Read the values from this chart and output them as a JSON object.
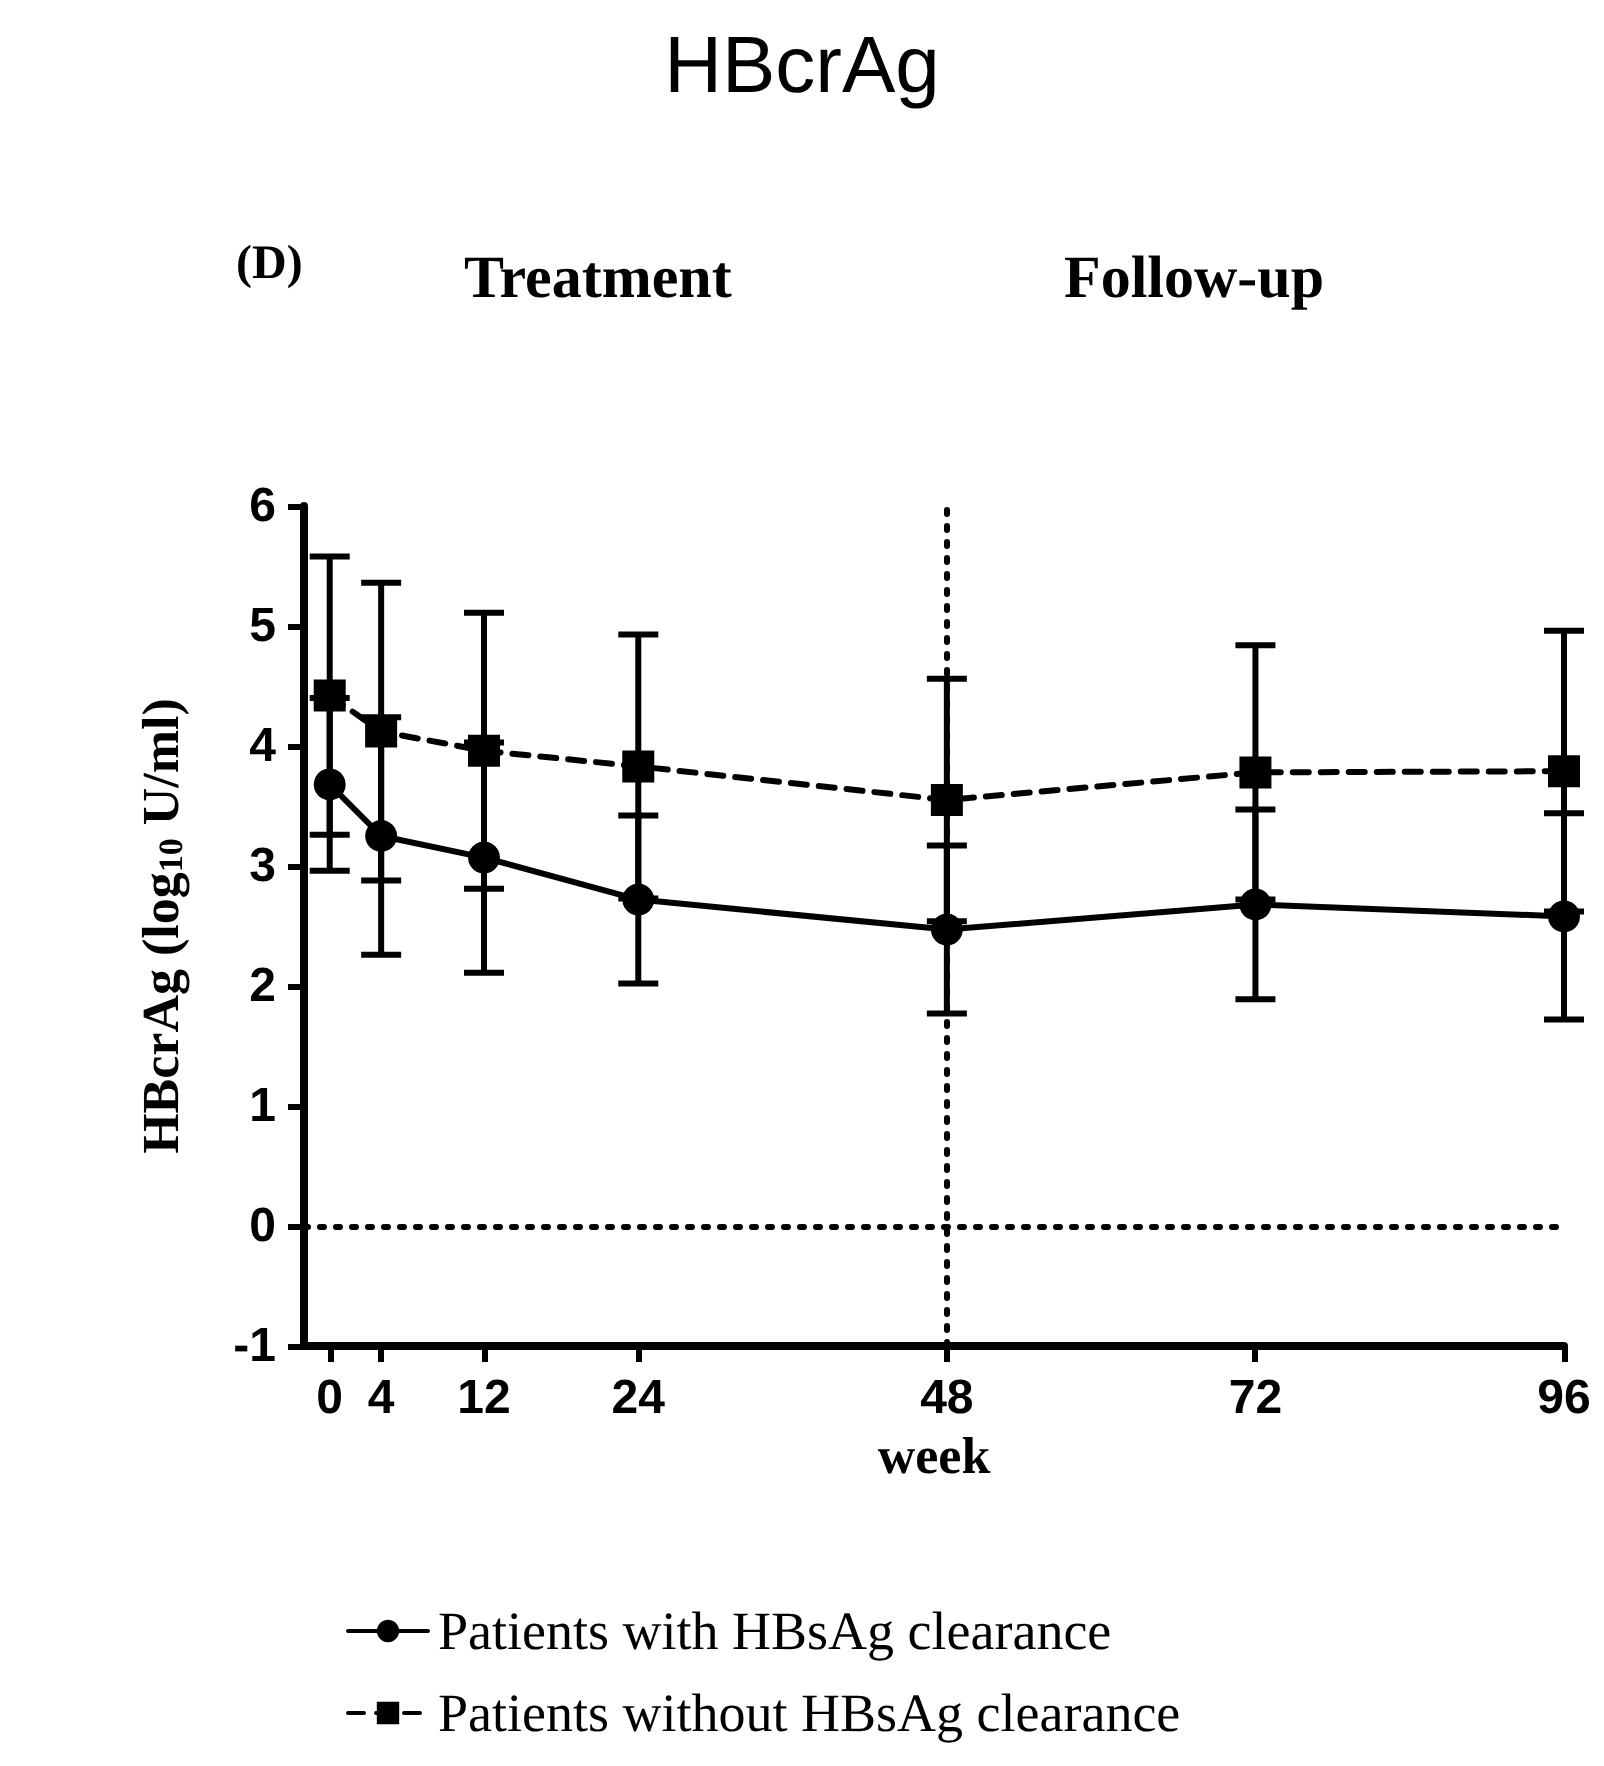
{
  "chart_data": {
    "type": "line",
    "title": "HBcrAg",
    "xlabel": "week",
    "ylabel": "HBcrAg (log$_{10}$ U/ml)",
    "annotations": [
      "(D)",
      "Treatment",
      "Follow-up"
    ],
    "x": [
      0,
      4,
      12,
      24,
      48,
      72,
      96
    ],
    "xlim": [
      -2,
      96
    ],
    "xticks": [
      0,
      4,
      12,
      24,
      48,
      72,
      96
    ],
    "ylim": [
      -1,
      6
    ],
    "yticks": [
      -1,
      0,
      1,
      2,
      3,
      4,
      5,
      6
    ],
    "series": [
      {
        "name": "Patients with HBsAg clearance",
        "color": "#000000",
        "marker": "circle",
        "line_style": "solid",
        "values": [
          3.68,
          3.25,
          3.07,
          2.72,
          2.47,
          2.68,
          2.58
        ],
        "errors": [
          0.72,
          0.99,
          0.96,
          0.7,
          0.7,
          0.79,
          0.86
        ]
      },
      {
        "name": "Patients without HBsAg clearance",
        "color": "#000000",
        "marker": "square",
        "line_style": "dashed",
        "values": [
          4.42,
          4.12,
          3.96,
          3.83,
          3.55,
          3.78,
          3.79
        ],
        "errors": [
          1.16,
          1.24,
          1.15,
          1.1,
          1.01,
          1.06,
          1.17
        ]
      }
    ],
    "ref_lines": [
      {
        "axis": "y",
        "value": 0,
        "line_style": "dotted"
      },
      {
        "axis": "x",
        "value": 48,
        "line_style": "dotted"
      }
    ],
    "legend": "bottom",
    "grid": false
  }
}
